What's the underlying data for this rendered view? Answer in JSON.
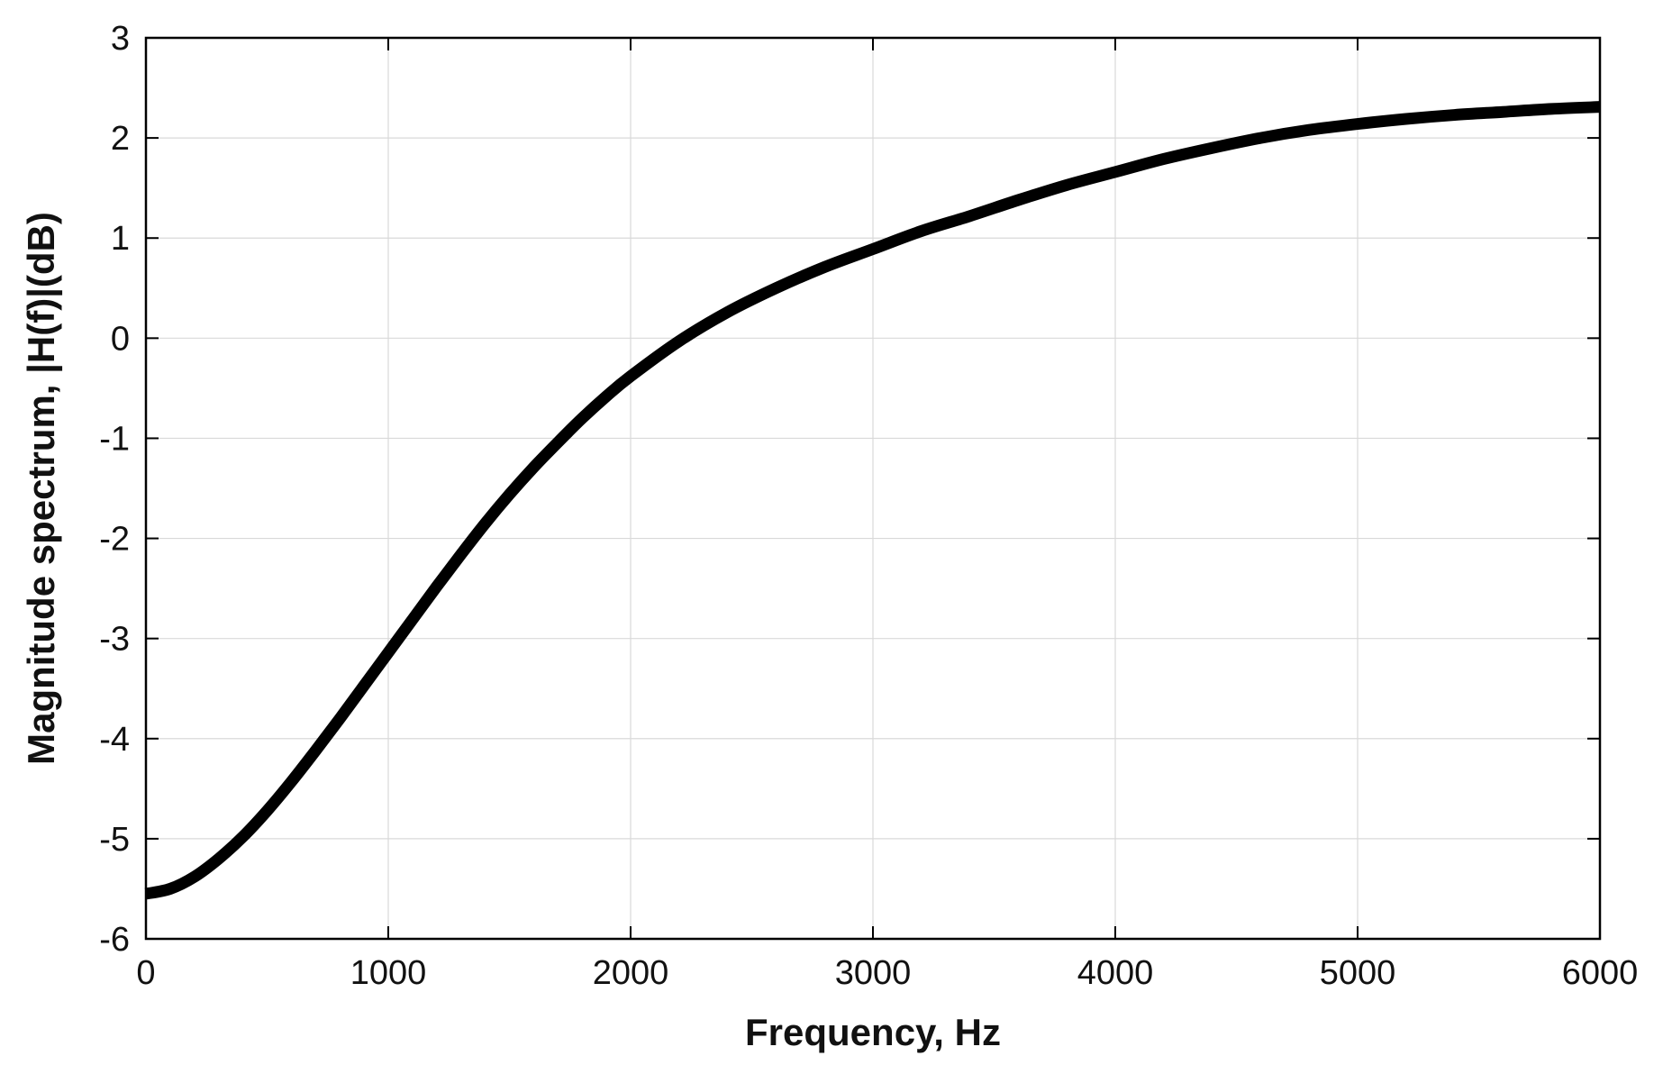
{
  "chart_data": {
    "type": "line",
    "title": "",
    "xlabel": "Frequency, Hz",
    "ylabel": "Magnitude spectrum,  |H(f)|(dB)",
    "xlim": [
      0,
      6000
    ],
    "ylim": [
      -6,
      3
    ],
    "xticks": [
      0,
      1000,
      2000,
      3000,
      4000,
      5000,
      6000
    ],
    "yticks": [
      -6,
      -5,
      -4,
      -3,
      -2,
      -1,
      0,
      1,
      2,
      3
    ],
    "grid": true,
    "legend": "none",
    "series": [
      {
        "color": "#000000",
        "x": [
          0,
          100,
          200,
          300,
          400,
          500,
          600,
          700,
          800,
          900,
          1000,
          1100,
          1200,
          1300,
          1400,
          1500,
          1600,
          1700,
          1800,
          1900,
          2000,
          2200,
          2400,
          2600,
          2800,
          3000,
          3200,
          3400,
          3600,
          3800,
          4000,
          4200,
          4400,
          4600,
          4800,
          5000,
          5200,
          5400,
          5600,
          5800,
          6000
        ],
        "y": [
          -5.55,
          -5.5,
          -5.38,
          -5.2,
          -4.98,
          -4.72,
          -4.43,
          -4.12,
          -3.8,
          -3.47,
          -3.14,
          -2.81,
          -2.48,
          -2.16,
          -1.85,
          -1.56,
          -1.29,
          -1.04,
          -0.8,
          -0.58,
          -0.38,
          -0.03,
          0.26,
          0.5,
          0.71,
          0.89,
          1.07,
          1.22,
          1.38,
          1.53,
          1.66,
          1.79,
          1.9,
          2.0,
          2.08,
          2.14,
          2.19,
          2.23,
          2.26,
          2.29,
          2.31
        ]
      }
    ]
  }
}
